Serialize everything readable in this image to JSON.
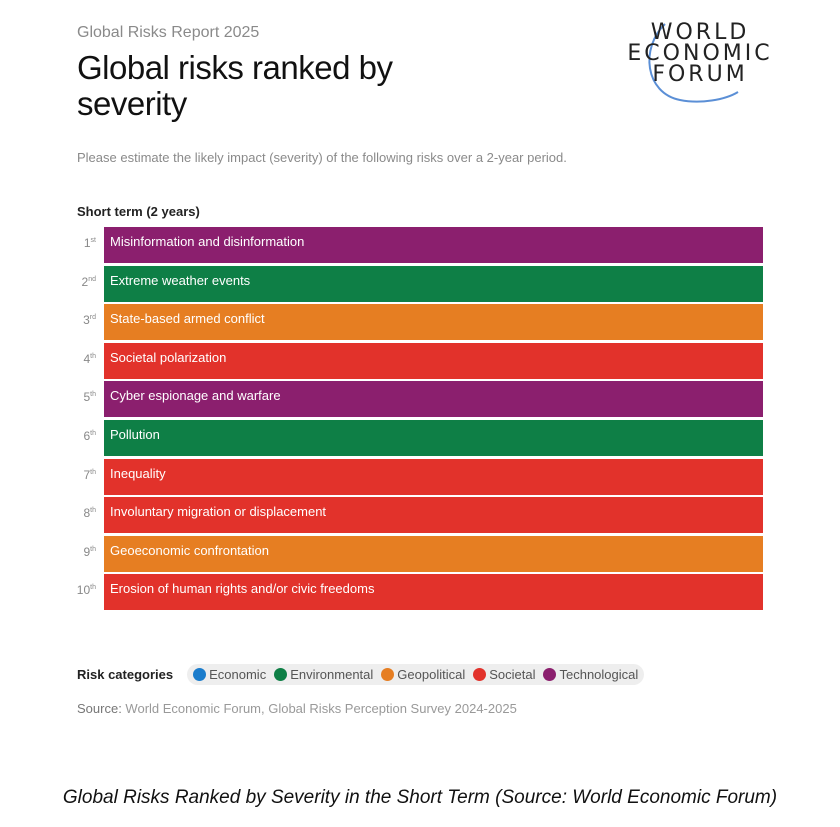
{
  "header": {
    "report": "Global Risks Report 2025",
    "title": "Global risks ranked by severity",
    "logo_text": [
      "WORLD",
      "ECONOMIC",
      "FORUM"
    ]
  },
  "question": "Please estimate the likely impact (severity) of the following risks over a 2-year period.",
  "colors": {
    "Economic": "#1a7ccc",
    "Environmental": "#0e7f46",
    "Geopolitical": "#e67e22",
    "Societal": "#e2322b",
    "Technological": "#8b1f6e"
  },
  "chart_data": {
    "type": "table",
    "title": "Short term (2 years)",
    "rows": [
      {
        "rank": "1",
        "suffix": "st",
        "label": "Misinformation and disinformation",
        "category": "Technological"
      },
      {
        "rank": "2",
        "suffix": "nd",
        "label": "Extreme weather events",
        "category": "Environmental"
      },
      {
        "rank": "3",
        "suffix": "rd",
        "label": "State-based armed conflict",
        "category": "Geopolitical"
      },
      {
        "rank": "4",
        "suffix": "th",
        "label": "Societal polarization",
        "category": "Societal"
      },
      {
        "rank": "5",
        "suffix": "th",
        "label": "Cyber espionage and warfare",
        "category": "Technological"
      },
      {
        "rank": "6",
        "suffix": "th",
        "label": "Pollution",
        "category": "Environmental"
      },
      {
        "rank": "7",
        "suffix": "th",
        "label": "Inequality",
        "category": "Societal"
      },
      {
        "rank": "8",
        "suffix": "th",
        "label": "Involuntary migration or displacement",
        "category": "Societal"
      },
      {
        "rank": "9",
        "suffix": "th",
        "label": "Geoeconomic confrontation",
        "category": "Geopolitical"
      },
      {
        "rank": "10",
        "suffix": "th",
        "label": "Erosion of human rights and/or civic freedoms",
        "category": "Societal"
      }
    ],
    "legend_title": "Risk categories",
    "legend": [
      "Economic",
      "Environmental",
      "Geopolitical",
      "Societal",
      "Technological"
    ]
  },
  "source": {
    "label": "Source:",
    "text": " World Economic Forum, Global Risks Perception Survey 2024-2025"
  },
  "caption": "Global Risks Ranked by Severity in the Short Term (Source: World Economic Forum)"
}
